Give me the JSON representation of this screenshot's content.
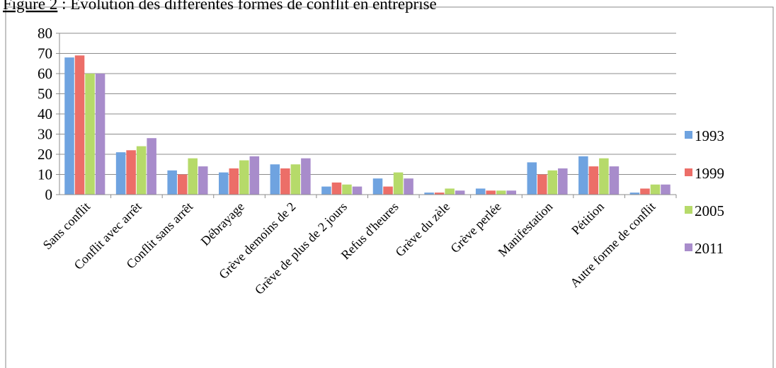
{
  "chart_data": {
    "type": "bar",
    "title_prefix": "Figure 2",
    "title": " : Évolution des différentes formes de conflit en entreprise",
    "categories": [
      "Sans conflit",
      "Conflit avec arrêt",
      "Conflit sans arrêt",
      "Débrayage",
      "Grève demoins de 2",
      "Grève de plus de 2 jours",
      "Refus d'heures",
      "Grève du zèle",
      "Grève perlée",
      "Manifestation",
      "Pétition",
      "Autre forme de conflit"
    ],
    "series": [
      {
        "name": "1993",
        "color": "#6fa3e0",
        "values": [
          68,
          21,
          12,
          11,
          15,
          4,
          8,
          1,
          3,
          16,
          19,
          1
        ]
      },
      {
        "name": "1999",
        "color": "#ec6e68",
        "values": [
          69,
          22,
          10,
          13,
          13,
          6,
          4,
          1,
          2,
          10,
          14,
          3
        ]
      },
      {
        "name": "2005",
        "color": "#b6da6a",
        "values": [
          60,
          24,
          18,
          17,
          15,
          5,
          11,
          3,
          2,
          12,
          18,
          5
        ]
      },
      {
        "name": "2011",
        "color": "#a88ccb",
        "values": [
          60,
          28,
          14,
          19,
          18,
          4,
          8,
          2,
          2,
          13,
          14,
          5
        ]
      }
    ],
    "ylim": [
      0,
      80
    ],
    "yticks": [
      0,
      10,
      20,
      30,
      40,
      50,
      60,
      70,
      80
    ],
    "grid": true,
    "legend": "right"
  }
}
